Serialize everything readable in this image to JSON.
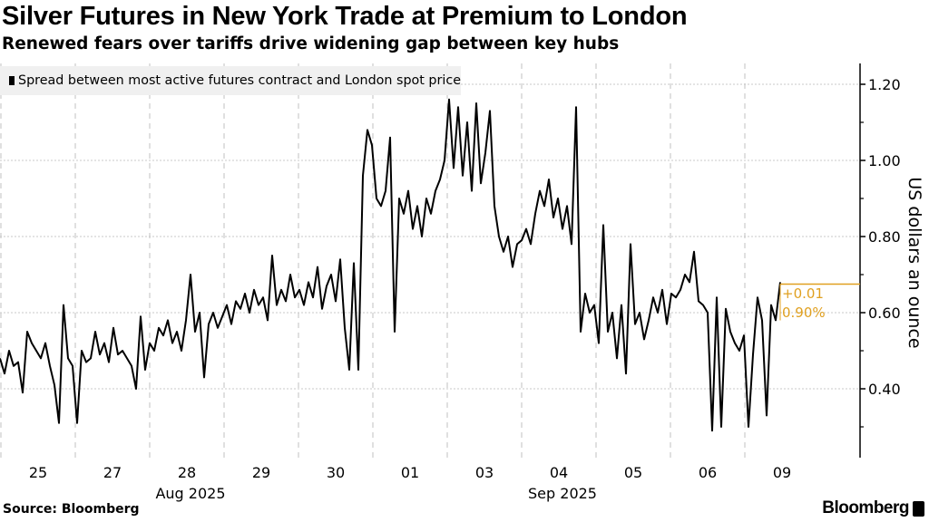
{
  "header": {
    "title": "Silver Futures in New York Trade at Premium to London",
    "subtitle": "Renewed fears over tariffs drive widening gap between key hubs"
  },
  "footer": {
    "source": "Source: Bloomberg",
    "brand": "Bloomberg"
  },
  "colors": {
    "line": "#000000",
    "annotation": "#e0a020",
    "legend_bg": "#f0f0f0",
    "grid": "#c8c8c8"
  },
  "chart_data": {
    "type": "line",
    "title": "Silver Futures in New York Trade at Premium to London",
    "legend": [
      "Spread between most active futures contract and London spot price"
    ],
    "legend_placement": "top-left",
    "ylabel": "US dollars an ounce",
    "ylim": [
      0.22,
      1.255
    ],
    "yticks": [
      "1.20",
      "1.00",
      "0.80",
      "0.60",
      "0.40"
    ],
    "ytick_values": [
      1.2,
      1.0,
      0.8,
      0.6,
      0.4
    ],
    "xticks": [
      "25",
      "27",
      "28",
      "29",
      "30",
      "01",
      "03",
      "04",
      "05",
      "06",
      "09"
    ],
    "xmonths": [
      "Aug 2025",
      "Sep 2025"
    ],
    "grid": true,
    "last_change": "+0.01",
    "last_change_pct": "0.90%",
    "last_value": 0.675,
    "series": [
      {
        "name": "Spread between most active futures contract and London spot price",
        "values": [
          0.48,
          0.44,
          0.5,
          0.46,
          0.47,
          0.39,
          0.55,
          0.52,
          0.5,
          0.48,
          0.52,
          0.46,
          0.41,
          0.31,
          0.62,
          0.48,
          0.46,
          0.31,
          0.5,
          0.47,
          0.48,
          0.55,
          0.49,
          0.52,
          0.47,
          0.56,
          0.49,
          0.5,
          0.48,
          0.46,
          0.4,
          0.59,
          0.45,
          0.52,
          0.5,
          0.56,
          0.54,
          0.58,
          0.52,
          0.55,
          0.5,
          0.58,
          0.7,
          0.55,
          0.6,
          0.43,
          0.57,
          0.6,
          0.56,
          0.59,
          0.62,
          0.57,
          0.63,
          0.61,
          0.65,
          0.6,
          0.66,
          0.62,
          0.64,
          0.58,
          0.75,
          0.62,
          0.66,
          0.63,
          0.7,
          0.64,
          0.66,
          0.62,
          0.68,
          0.64,
          0.72,
          0.61,
          0.67,
          0.7,
          0.63,
          0.74,
          0.56,
          0.45,
          0.73,
          0.45,
          0.96,
          1.08,
          1.04,
          0.9,
          0.88,
          0.92,
          1.06,
          0.55,
          0.9,
          0.86,
          0.92,
          0.82,
          0.88,
          0.8,
          0.9,
          0.86,
          0.92,
          0.95,
          1.0,
          1.16,
          0.98,
          1.14,
          0.96,
          1.1,
          0.92,
          1.15,
          0.94,
          1.02,
          1.13,
          0.88,
          0.8,
          0.76,
          0.8,
          0.72,
          0.78,
          0.79,
          0.82,
          0.78,
          0.86,
          0.92,
          0.88,
          0.95,
          0.85,
          0.9,
          0.82,
          0.88,
          0.78,
          1.14,
          0.55,
          0.65,
          0.6,
          0.62,
          0.52,
          0.83,
          0.55,
          0.6,
          0.48,
          0.62,
          0.44,
          0.78,
          0.57,
          0.6,
          0.53,
          0.58,
          0.64,
          0.6,
          0.66,
          0.57,
          0.65,
          0.64,
          0.66,
          0.7,
          0.68,
          0.76,
          0.63,
          0.62,
          0.6,
          0.29,
          0.64,
          0.3,
          0.61,
          0.55,
          0.52,
          0.5,
          0.54,
          0.3,
          0.49,
          0.64,
          0.58,
          0.33,
          0.62,
          0.58,
          0.68
        ]
      }
    ]
  }
}
